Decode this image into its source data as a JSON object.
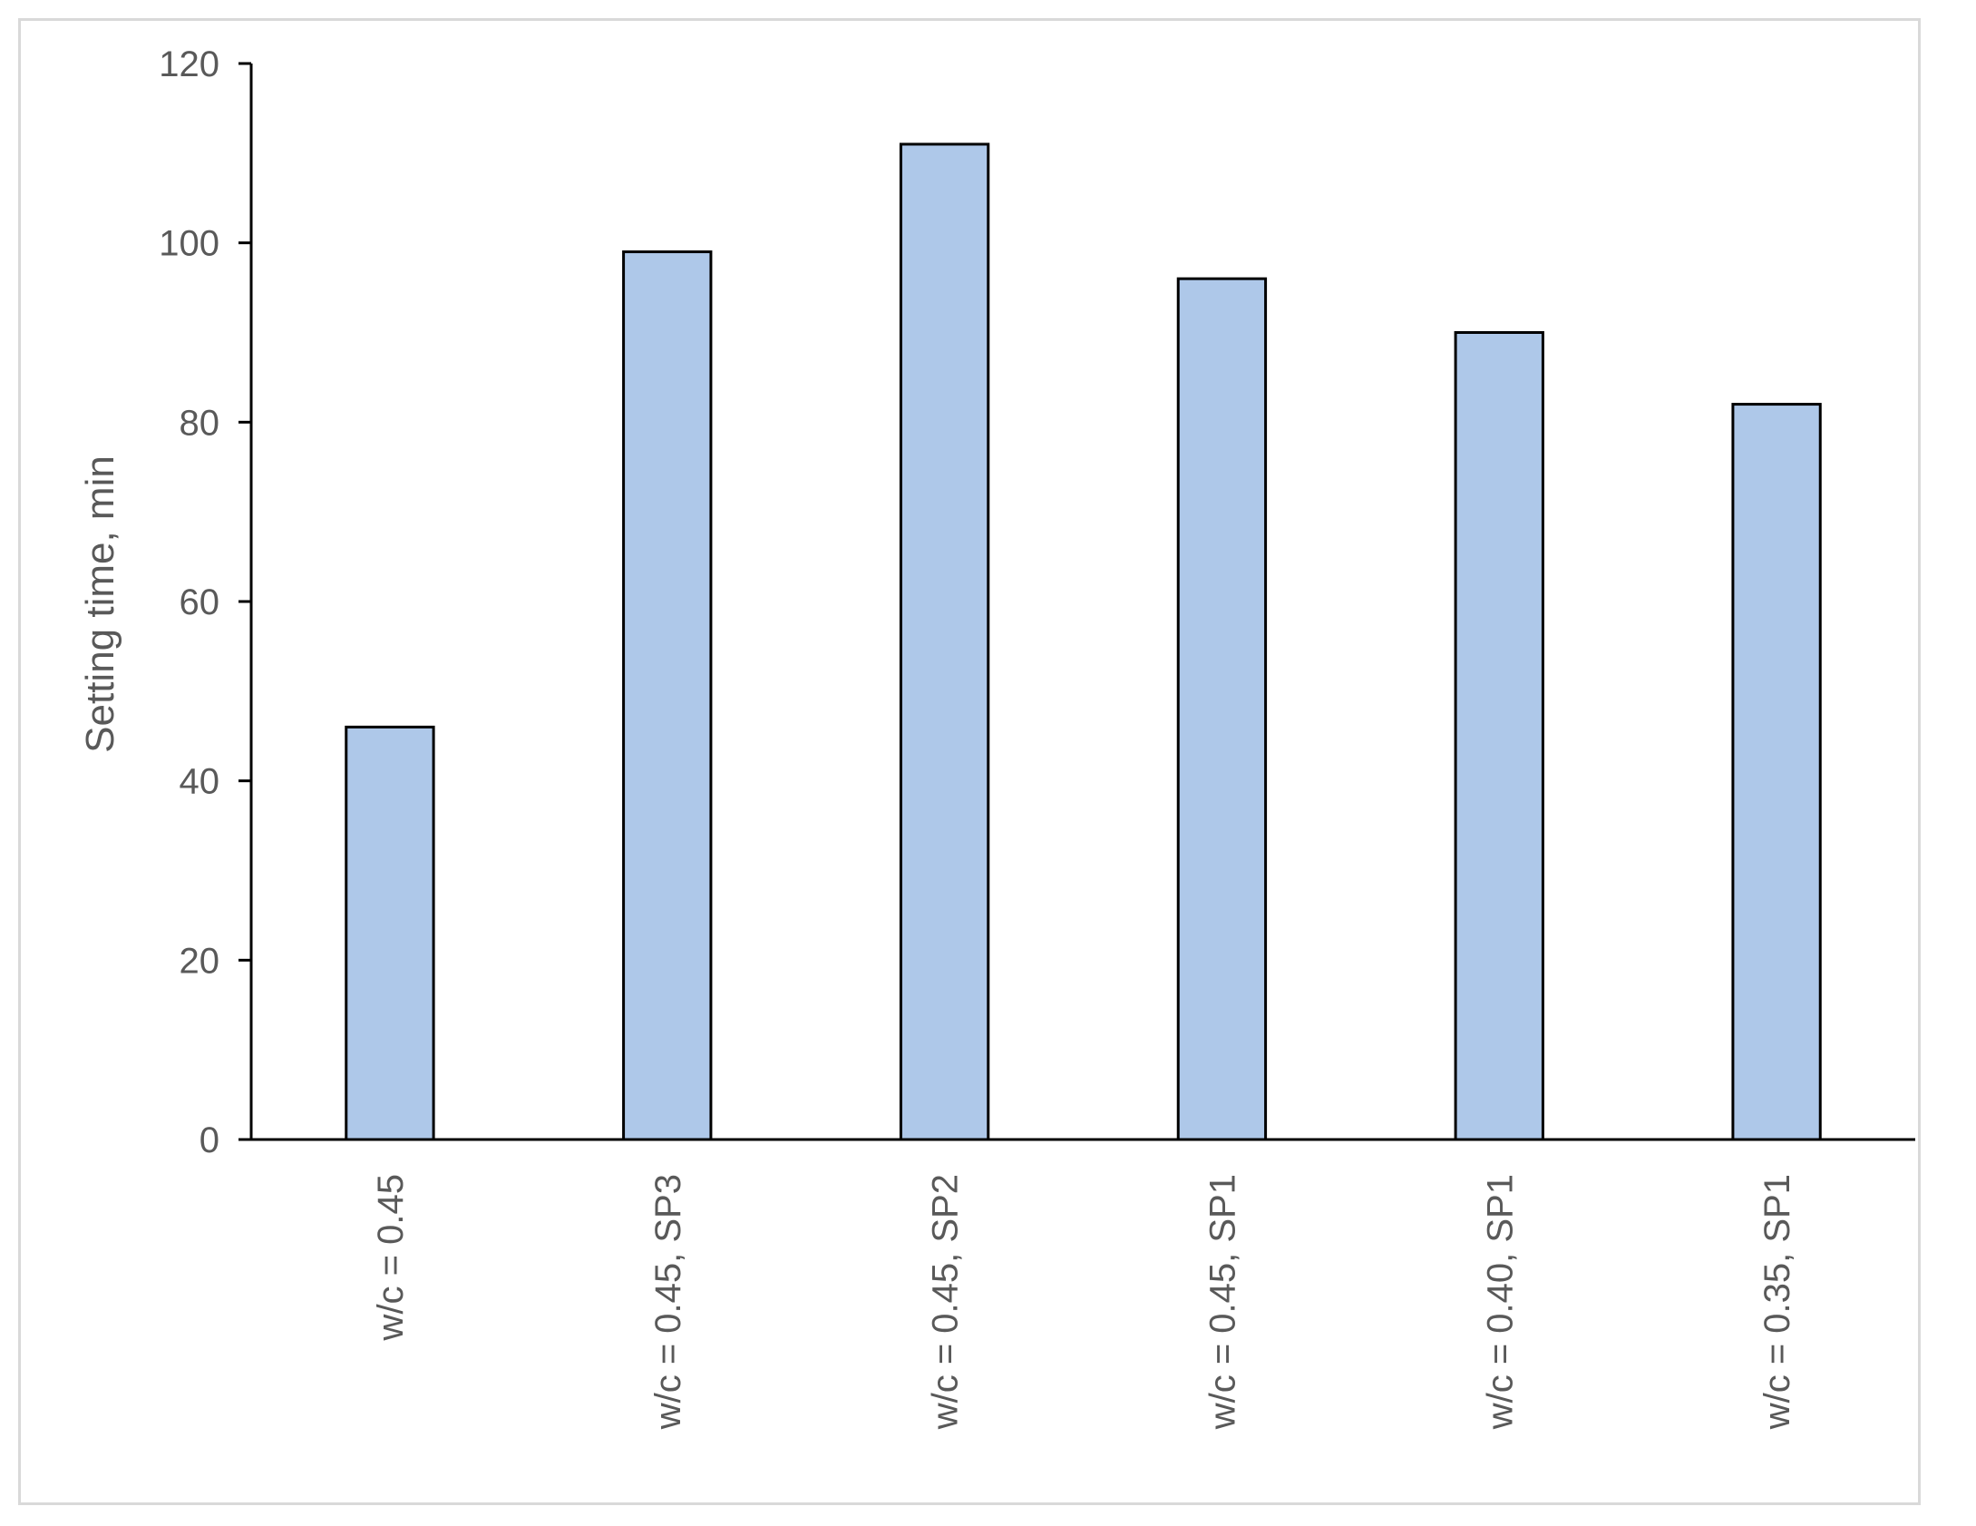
{
  "chart_data": {
    "type": "bar",
    "title": "",
    "xlabel": "",
    "ylabel": "Setting time, min",
    "categories": [
      "w/c = 0.45",
      "w/c = 0.45, SP3",
      "w/c = 0.45, SP2",
      "w/c = 0.45, SP1",
      "w/c = 0.40, SP1",
      "w/c = 0.35, SP1"
    ],
    "values": [
      46,
      99,
      111,
      96,
      90,
      82
    ],
    "ylim": [
      0,
      120
    ],
    "yticks": [
      0,
      20,
      40,
      60,
      80,
      100,
      120
    ],
    "grid": false,
    "legend": "none",
    "bar_color": "#aec8e9",
    "bar_edge_color": "#000000"
  }
}
